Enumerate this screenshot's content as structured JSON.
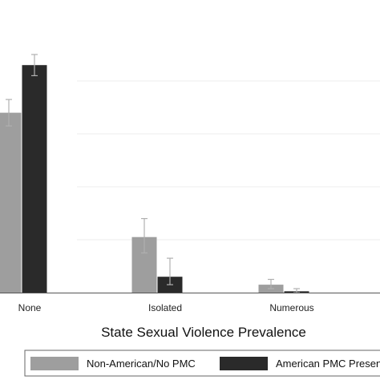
{
  "chart_data": {
    "type": "bar",
    "title": "",
    "xlabel": "State Sexual Violence Prevalence",
    "ylabel": "",
    "categories": [
      "None",
      "Isolated",
      "Numerous"
    ],
    "series": [
      {
        "name": "Non-American/No PMC",
        "color": "#9e9e9e",
        "values": [
          0.68,
          0.21,
          0.03
        ],
        "ci_low": [
          0.63,
          0.15,
          0.015
        ],
        "ci_high": [
          0.73,
          0.28,
          0.05
        ]
      },
      {
        "name": "American PMC Present",
        "color": "#2a2a2a",
        "values": [
          0.86,
          0.06,
          0.005
        ],
        "ci_low": [
          0.82,
          0.03,
          0.0
        ],
        "ci_high": [
          0.9,
          0.13,
          0.015
        ]
      }
    ],
    "ylim": [
      0,
      1
    ],
    "grid": true,
    "error_bars": true,
    "legend_position": "bottom"
  }
}
